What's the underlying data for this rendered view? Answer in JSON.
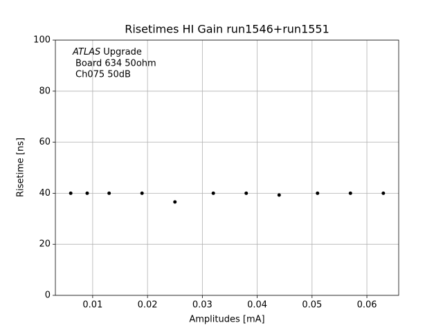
{
  "chart_data": {
    "type": "scatter",
    "title": "Risetimes HI Gain run1546+run1551",
    "x_label": "Amplitudes [mA]",
    "y_label": "Risetime [ns]",
    "annotations": [
      "ATLAS",
      "Upgrade",
      "Board 634 50ohm",
      "Ch075 50dB"
    ],
    "x": [
      0.006,
      0.009,
      0.013,
      0.019,
      0.025,
      0.032,
      0.038,
      0.044,
      0.051,
      0.057,
      0.063
    ],
    "values": [
      40,
      40,
      40,
      40,
      36.6,
      40,
      40,
      39.3,
      40,
      40,
      40
    ],
    "color": "#000000",
    "xlim": [
      0.0032,
      0.0658
    ],
    "xticks": [
      0.01,
      0.02,
      0.03,
      0.04,
      0.05,
      0.06
    ],
    "ylim": [
      0,
      100
    ],
    "yticks": [
      0,
      20,
      40,
      60,
      80,
      100
    ],
    "grid": true
  }
}
